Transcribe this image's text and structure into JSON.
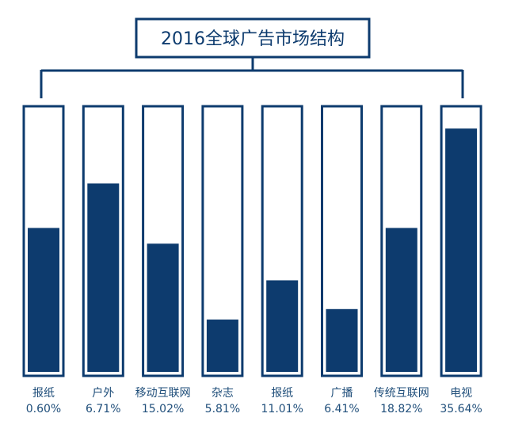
{
  "chart_data": {
    "type": "bar",
    "title": "2016全球广告市场结构",
    "categories": [
      "报纸",
      "户外",
      "移动互联网",
      "杂志",
      "报纸",
      "广播",
      "传统互联网",
      "电视"
    ],
    "value_labels": [
      "0.60%",
      "6.71%",
      "15.02%",
      "5.81%",
      "11.01%",
      "6.41%",
      "18.82%",
      "35.64%"
    ],
    "fill_fraction": [
      0.55,
      0.72,
      0.49,
      0.2,
      0.35,
      0.24,
      0.55,
      0.93
    ],
    "colors": {
      "bar": "#0d3b6e",
      "frame": "#0d3b6e",
      "background": "#ffffff"
    }
  }
}
